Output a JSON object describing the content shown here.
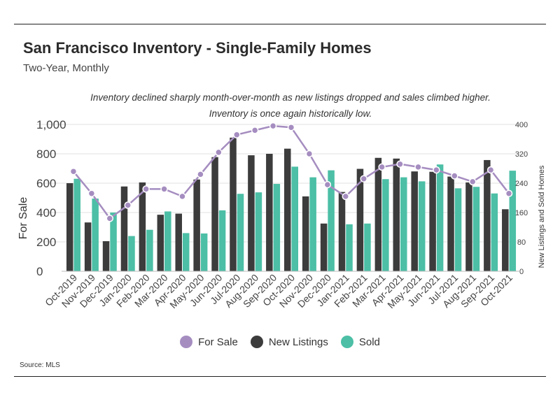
{
  "header": {
    "title": "San Francisco Inventory - Single-Family Homes",
    "subtitle": "Two-Year, Monthly"
  },
  "annotation": "Inventory declined sharply month-over-month as new listings dropped and sales climbed higher. Inventory is once again historically low.",
  "source": "Source:  MLS",
  "colors": {
    "for_sale": "#a58dc0",
    "new_listings": "#3c3c3c",
    "sold": "#4cbfa6",
    "grid": "#e2e2e2"
  },
  "chart_data": {
    "type": "bar",
    "categories": [
      "Oct-2019",
      "Nov-2019",
      "Dec-2019",
      "Jan-2020",
      "Feb-2020",
      "Mar-2020",
      "Apr-2020",
      "May-2020",
      "Jun-2020",
      "Jul-2020",
      "Aug-2020",
      "Sep-2020",
      "Oct-2020",
      "Nov-2020",
      "Dec-2020",
      "Jan-2021",
      "Feb-2021",
      "Mar-2021",
      "Apr-2021",
      "May-2021",
      "Jun-2021",
      "Jul-2021",
      "Aug-2021",
      "Sep-2021",
      "Oct-2021"
    ],
    "series": [
      {
        "name": "For Sale",
        "type": "line",
        "axis": "left",
        "values": [
          680,
          530,
          360,
          450,
          560,
          560,
          510,
          660,
          810,
          930,
          960,
          990,
          980,
          800,
          590,
          510,
          630,
          710,
          730,
          710,
          690,
          650,
          610,
          690,
          530
        ]
      },
      {
        "name": "New Listings",
        "type": "bar",
        "axis": "right",
        "values": [
          240,
          133,
          82,
          231,
          242,
          154,
          157,
          250,
          311,
          364,
          316,
          320,
          334,
          204,
          130,
          216,
          279,
          309,
          307,
          272,
          271,
          258,
          242,
          303,
          169
        ]
      },
      {
        "name": "Sold",
        "type": "bar",
        "axis": "right",
        "values": [
          252,
          198,
          160,
          96,
          113,
          163,
          104,
          103,
          166,
          211,
          215,
          238,
          285,
          256,
          275,
          128,
          130,
          251,
          256,
          245,
          291,
          226,
          230,
          212,
          274
        ]
      }
    ],
    "ylabel": "For Sale",
    "ylabel_right": "New Listings and Sold Homes",
    "ylim": [
      0,
      1000
    ],
    "ylim_right": [
      0,
      400
    ],
    "yticks": [
      "0",
      "200",
      "400",
      "600",
      "800",
      "1,000"
    ],
    "yticks_right": [
      "0",
      "80",
      "160",
      "240",
      "320",
      "400"
    ],
    "grid": true,
    "legend_position": "bottom"
  }
}
